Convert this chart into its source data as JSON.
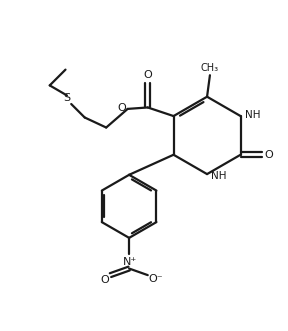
{
  "background_color": "#ffffff",
  "line_color": "#1a1a1a",
  "line_width": 1.6,
  "figsize": [
    2.88,
    3.31
  ],
  "dpi": 100,
  "xlim": [
    0,
    10
  ],
  "ylim": [
    0,
    11.5
  ]
}
